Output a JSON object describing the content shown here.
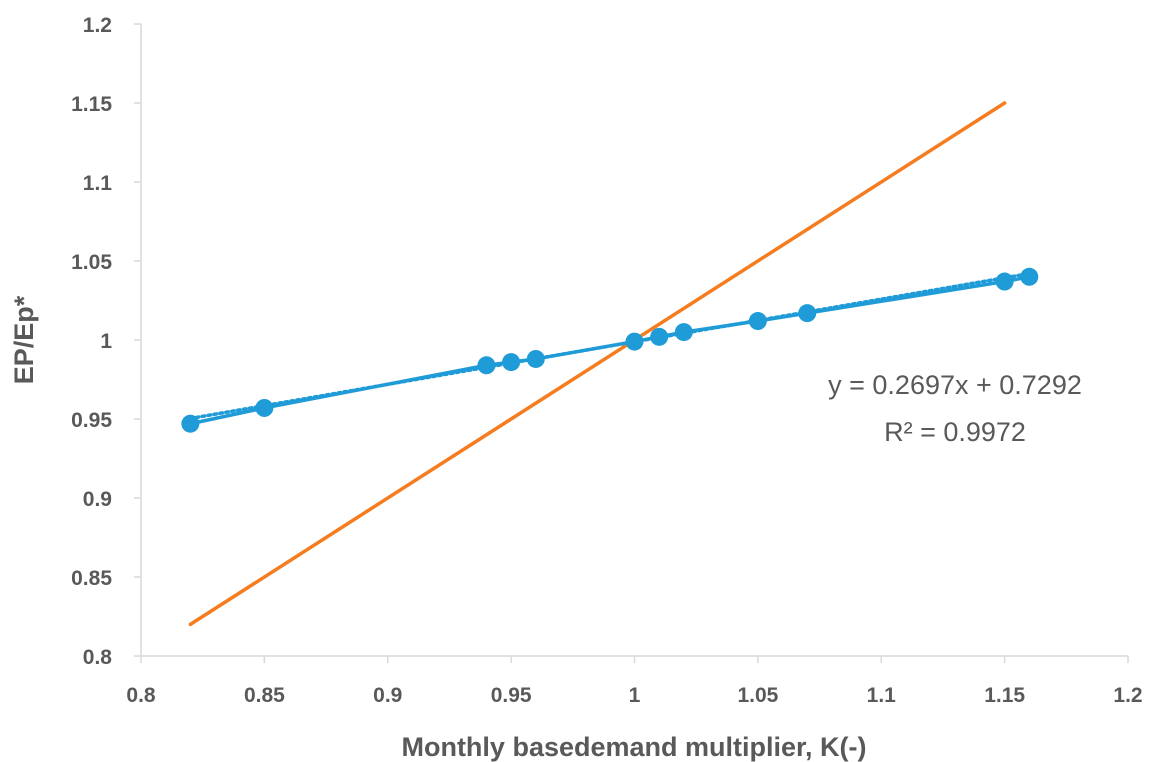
{
  "chart_data": {
    "type": "scatter",
    "title": "",
    "xlabel": "Monthly basedemand multiplier, K(-)",
    "ylabel": "EP/Ep*",
    "xlim": [
      0.8,
      1.2
    ],
    "ylim": [
      0.8,
      1.2
    ],
    "x_ticks": [
      "0.8",
      "0.85",
      "0.9",
      "0.95",
      "1",
      "1.05",
      "1.1",
      "1.15",
      "1.2"
    ],
    "y_ticks": [
      "0.8",
      "0.85",
      "0.9",
      "0.95",
      "1",
      "1.05",
      "1.1",
      "1.15",
      "1.2"
    ],
    "grid": false,
    "legend": "none",
    "series": [
      {
        "style": "line+markers",
        "color": "#1F9BD7",
        "points": [
          {
            "x": 0.82,
            "y": 0.947
          },
          {
            "x": 0.85,
            "y": 0.957
          },
          {
            "x": 0.94,
            "y": 0.984
          },
          {
            "x": 0.95,
            "y": 0.986
          },
          {
            "x": 0.96,
            "y": 0.988
          },
          {
            "x": 1.0,
            "y": 0.999
          },
          {
            "x": 1.01,
            "y": 1.002
          },
          {
            "x": 1.02,
            "y": 1.005
          },
          {
            "x": 1.05,
            "y": 1.012
          },
          {
            "x": 1.07,
            "y": 1.017
          },
          {
            "x": 1.15,
            "y": 1.037
          },
          {
            "x": 1.16,
            "y": 1.04
          }
        ]
      },
      {
        "style": "line",
        "color": "#F57C1F",
        "points": [
          {
            "x": 0.82,
            "y": 0.82
          },
          {
            "x": 1.15,
            "y": 1.15
          }
        ]
      }
    ],
    "trendline": {
      "style": "dotted",
      "color": "#1F9BD7",
      "slope": 0.2697,
      "intercept": 0.7292,
      "x_range": [
        0.82,
        1.16
      ],
      "equation": "y = 0.2697x + 0.7292",
      "r_squared": "R² = 0.9972"
    }
  }
}
